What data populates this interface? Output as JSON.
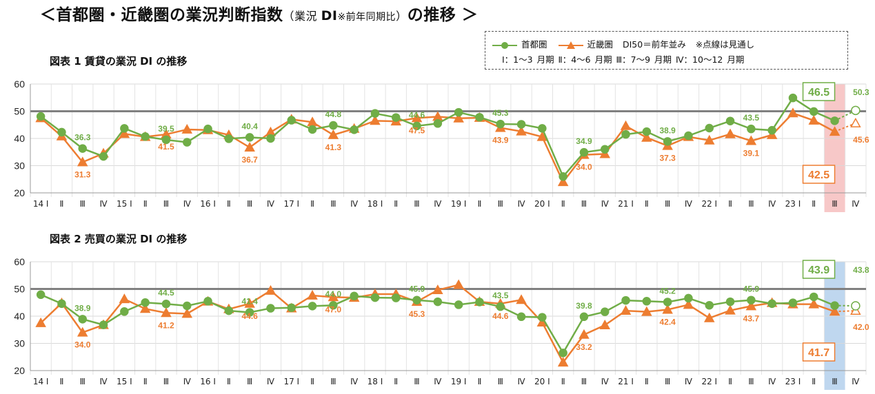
{
  "header": {
    "title_main": "＜首都圏・近畿圏の業況判断指数",
    "title_paren_open": "（業況 ",
    "title_di": "DI",
    "title_note": "※前年同期比",
    "title_paren_close": "）",
    "title_tail": "の推移 ＞"
  },
  "legend": {
    "series1": "首都圏",
    "series2": "近畿圏",
    "baseline_note": "DI50＝前年並み",
    "forecast_note": "※点線は見通し",
    "quarters_note": "Ⅰ：1〜3 月期 Ⅱ：4〜6 月期 Ⅲ：7〜9 月期 Ⅳ：10〜12 月期"
  },
  "colors": {
    "shutoken": "#70ad47",
    "kinki": "#ed7d31",
    "baseline": "#808080",
    "highlight1": "#f4b6b6",
    "highlight2": "#a9c9ea"
  },
  "categories": [
    "14 Ⅰ",
    "Ⅱ",
    "Ⅲ",
    "Ⅳ",
    "15 Ⅰ",
    "Ⅱ",
    "Ⅲ",
    "Ⅳ",
    "16 Ⅰ",
    "Ⅱ",
    "Ⅲ",
    "Ⅳ",
    "17 Ⅰ",
    "Ⅱ",
    "Ⅲ",
    "Ⅳ",
    "18 Ⅰ",
    "Ⅱ",
    "Ⅲ",
    "Ⅳ",
    "19 Ⅰ",
    "Ⅱ",
    "Ⅲ",
    "Ⅳ",
    "20 Ⅰ",
    "Ⅱ",
    "Ⅲ",
    "Ⅳ",
    "21 Ⅰ",
    "Ⅱ",
    "Ⅲ",
    "Ⅳ",
    "22 Ⅰ",
    "Ⅱ",
    "Ⅲ",
    "Ⅳ",
    "23 Ⅰ",
    "Ⅱ",
    "Ⅲ",
    "Ⅳ"
  ],
  "chart_data": [
    {
      "type": "line",
      "title": "図表 1 賃貸の業況 DI の推移",
      "ylim": [
        20,
        60
      ],
      "yticks": [
        20,
        30,
        40,
        50,
        60
      ],
      "baseline": 50,
      "grid": "horizontal",
      "highlight_index": 38,
      "series": [
        {
          "name": "首都圏",
          "values": [
            48.1,
            42.3,
            36.3,
            33.4,
            43.7,
            40.7,
            39.5,
            38.6,
            43.5,
            39.9,
            40.4,
            40.0,
            46.7,
            43.3,
            44.8,
            43.2,
            49.2,
            47.7,
            44.6,
            45.5,
            49.6,
            47.8,
            45.3,
            45.2,
            43.7,
            26.0,
            34.9,
            36.0,
            41.5,
            42.5,
            38.9,
            41.0,
            43.8,
            46.4,
            43.5,
            43.0,
            54.9,
            49.9,
            46.5,
            50.3
          ],
          "forecast_from": 38
        },
        {
          "name": "近畿圏",
          "values": [
            47.5,
            40.8,
            31.3,
            34.5,
            41.7,
            40.6,
            41.5,
            43.3,
            43.1,
            41.3,
            36.7,
            42.3,
            47.0,
            46.0,
            41.3,
            43.6,
            46.5,
            46.3,
            47.5,
            48.0,
            47.4,
            47.6,
            43.9,
            42.6,
            40.6,
            24.0,
            34.0,
            34.3,
            44.6,
            40.3,
            37.3,
            40.6,
            39.3,
            41.6,
            39.1,
            41.3,
            49.3,
            46.6,
            42.5,
            45.6
          ],
          "forecast_from": 38
        }
      ],
      "data_labels": [
        {
          "series": 0,
          "index": 2,
          "text": "36.3"
        },
        {
          "series": 0,
          "index": 6,
          "text": "39.5"
        },
        {
          "series": 0,
          "index": 10,
          "text": "40.4"
        },
        {
          "series": 0,
          "index": 14,
          "text": "44.8"
        },
        {
          "series": 0,
          "index": 18,
          "text": "44.6"
        },
        {
          "series": 0,
          "index": 22,
          "text": "45.3"
        },
        {
          "series": 0,
          "index": 26,
          "text": "34.9"
        },
        {
          "series": 0,
          "index": 30,
          "text": "38.9"
        },
        {
          "series": 0,
          "index": 34,
          "text": "43.5"
        },
        {
          "series": 0,
          "index": 38,
          "text": "46.5"
        },
        {
          "series": 0,
          "index": 39,
          "text": "50.3"
        },
        {
          "series": 1,
          "index": 2,
          "text": "31.3"
        },
        {
          "series": 1,
          "index": 6,
          "text": "41.5"
        },
        {
          "series": 1,
          "index": 10,
          "text": "36.7"
        },
        {
          "series": 1,
          "index": 14,
          "text": "41.3"
        },
        {
          "series": 1,
          "index": 18,
          "text": "47.5"
        },
        {
          "series": 1,
          "index": 22,
          "text": "43.9"
        },
        {
          "series": 1,
          "index": 26,
          "text": "34.0"
        },
        {
          "series": 1,
          "index": 30,
          "text": "37.3"
        },
        {
          "series": 1,
          "index": 34,
          "text": "39.1"
        },
        {
          "series": 1,
          "index": 38,
          "text": "42.5"
        },
        {
          "series": 1,
          "index": 39,
          "text": "45.6"
        }
      ]
    },
    {
      "type": "line",
      "title": "図表 2 売買の業況 DI の推移",
      "ylim": [
        20,
        60
      ],
      "yticks": [
        20,
        30,
        40,
        50,
        60
      ],
      "baseline": 50,
      "grid": "horizontal",
      "highlight_index": 38,
      "series": [
        {
          "name": "首都圏",
          "values": [
            47.9,
            44.6,
            38.9,
            36.8,
            41.7,
            45.0,
            44.5,
            43.8,
            45.5,
            42.0,
            41.4,
            42.9,
            43.1,
            43.7,
            44.0,
            47.4,
            46.8,
            46.7,
            45.9,
            45.3,
            44.2,
            45.2,
            43.5,
            39.8,
            39.6,
            26.5,
            39.8,
            41.6,
            45.8,
            45.5,
            45.2,
            46.6,
            44.0,
            45.3,
            45.9,
            44.6,
            44.9,
            47.1,
            43.9,
            43.8
          ],
          "forecast_from": 38
        },
        {
          "name": "近畿圏",
          "values": [
            37.5,
            44.8,
            34.0,
            36.8,
            46.3,
            42.7,
            41.2,
            40.9,
            45.4,
            42.6,
            44.6,
            49.4,
            42.9,
            47.6,
            47.0,
            46.8,
            48.1,
            48.1,
            45.3,
            49.6,
            51.5,
            45.3,
            44.6,
            46.0,
            37.7,
            23.0,
            33.2,
            36.7,
            42.0,
            41.6,
            42.4,
            44.2,
            39.3,
            42.1,
            43.7,
            44.9,
            44.4,
            44.4,
            41.7,
            42.0
          ],
          "forecast_from": 38
        }
      ],
      "data_labels": [
        {
          "series": 0,
          "index": 2,
          "text": "38.9"
        },
        {
          "series": 0,
          "index": 6,
          "text": "44.5"
        },
        {
          "series": 0,
          "index": 10,
          "text": "41.4"
        },
        {
          "series": 0,
          "index": 14,
          "text": "44.0"
        },
        {
          "series": 0,
          "index": 18,
          "text": "45.9"
        },
        {
          "series": 0,
          "index": 22,
          "text": "43.5"
        },
        {
          "series": 0,
          "index": 26,
          "text": "39.8"
        },
        {
          "series": 0,
          "index": 30,
          "text": "45.2"
        },
        {
          "series": 0,
          "index": 34,
          "text": "45.9"
        },
        {
          "series": 0,
          "index": 38,
          "text": "43.9"
        },
        {
          "series": 0,
          "index": 39,
          "text": "43.8"
        },
        {
          "series": 1,
          "index": 2,
          "text": "34.0"
        },
        {
          "series": 1,
          "index": 6,
          "text": "41.2"
        },
        {
          "series": 1,
          "index": 10,
          "text": "44.6"
        },
        {
          "series": 1,
          "index": 14,
          "text": "47.0"
        },
        {
          "series": 1,
          "index": 18,
          "text": "45.3"
        },
        {
          "series": 1,
          "index": 22,
          "text": "44.6"
        },
        {
          "series": 1,
          "index": 26,
          "text": "33.2"
        },
        {
          "series": 1,
          "index": 30,
          "text": "42.4"
        },
        {
          "series": 1,
          "index": 34,
          "text": "43.7"
        },
        {
          "series": 1,
          "index": 38,
          "text": "41.7"
        },
        {
          "series": 1,
          "index": 39,
          "text": "42.0"
        }
      ]
    }
  ]
}
